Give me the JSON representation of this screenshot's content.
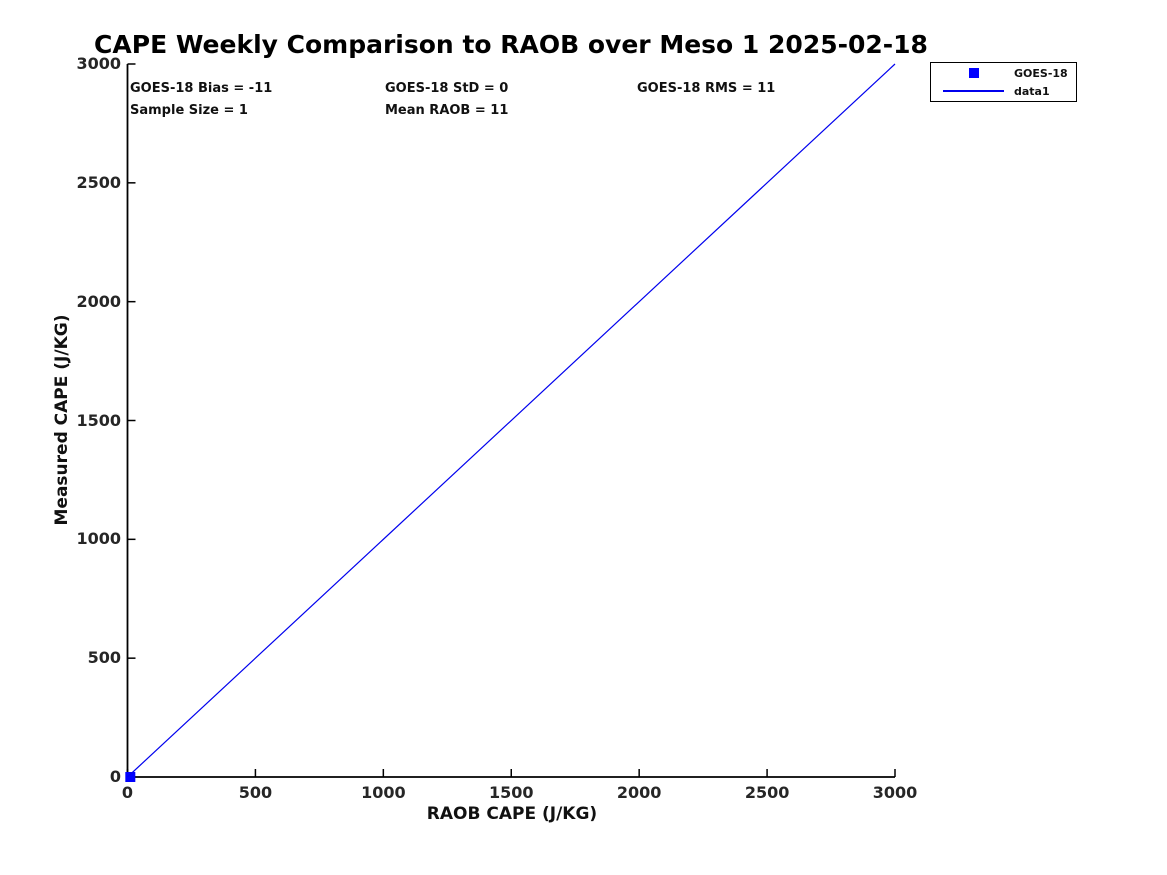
{
  "title": "CAPE Weekly Comparison to RAOB over Meso 1 2025-02-18",
  "colors": {
    "line": "#0000EE",
    "marker": "#0000FF",
    "axis": "#000000",
    "text": "#000000"
  },
  "stats": [
    {
      "id": "bias",
      "text": "GOES-18 Bias = -11",
      "row": 0,
      "col": 0
    },
    {
      "id": "std",
      "text": "GOES-18 StD = 0",
      "row": 0,
      "col": 1
    },
    {
      "id": "rms",
      "text": "GOES-18 RMS = 11",
      "row": 0,
      "col": 2
    },
    {
      "id": "sample",
      "text": "Sample Size = 1",
      "row": 1,
      "col": 0
    },
    {
      "id": "mean-raob",
      "text": "Mean RAOB = 11",
      "row": 1,
      "col": 1
    }
  ],
  "legend": {
    "entries": [
      {
        "label": "GOES-18",
        "swatch": "marker",
        "color": "#0000FF"
      },
      {
        "label": "data1",
        "swatch": "line",
        "color": "#0000EE"
      }
    ]
  },
  "chart_data": {
    "type": "scatter",
    "title": "CAPE Weekly Comparison to RAOB over Meso 1 2025-02-18",
    "xlabel": "RAOB CAPE (J/KG)",
    "ylabel": "Measured CAPE (J/KG)",
    "xlim": [
      0,
      3000
    ],
    "ylim": [
      0,
      3000
    ],
    "x_ticks": [
      0,
      500,
      1000,
      1500,
      2000,
      2500,
      3000
    ],
    "y_ticks": [
      0,
      500,
      1000,
      1500,
      2000,
      2500,
      3000
    ],
    "grid": false,
    "legend_position": "top-right-outside",
    "series": [
      {
        "name": "GOES-18",
        "type": "scatter",
        "marker": "square",
        "color": "#0000FF",
        "points": [
          [
            11,
            0
          ]
        ]
      },
      {
        "name": "data1",
        "type": "line",
        "color": "#0000EE",
        "points": [
          [
            0,
            0
          ],
          [
            3000,
            3000
          ]
        ]
      }
    ],
    "annotations": [
      "GOES-18 Bias = -11",
      "GOES-18 StD = 0",
      "GOES-18 RMS = 11",
      "Sample Size = 1",
      "Mean RAOB = 11"
    ]
  }
}
